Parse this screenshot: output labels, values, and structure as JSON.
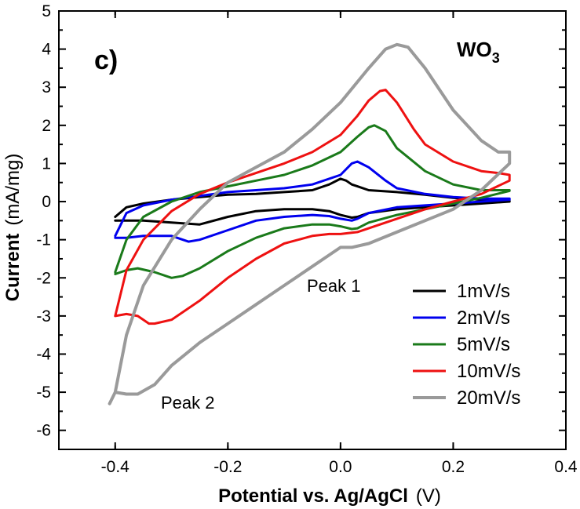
{
  "chart_data": {
    "type": "line",
    "panel_label": "c)",
    "material_label": "WO",
    "material_subscript": "3",
    "xlabel": "Potential vs. Ag/AgCl",
    "xunit": "(V)",
    "ylabel": "Current",
    "yunit": "(mA/mg)",
    "xlim": [
      -0.5,
      0.4
    ],
    "ylim": [
      -6.5,
      5
    ],
    "xticks": [
      -0.4,
      -0.2,
      0.0,
      0.2,
      0.4
    ],
    "xtick_labels": [
      "-0.4",
      "-0.2",
      "0.0",
      "0.2",
      "0.4"
    ],
    "yticks": [
      -6,
      -5,
      -4,
      -3,
      -2,
      -1,
      0,
      1,
      2,
      3,
      4,
      5
    ],
    "ytick_labels": [
      "-6",
      "-5",
      "-4",
      "-3",
      "-2",
      "-1",
      "0",
      "1",
      "2",
      "3",
      "4",
      "5"
    ],
    "grid": false,
    "legend_position": "bottom-right",
    "annotations": [
      {
        "text": "Peak 1",
        "x": 0.0,
        "y": -2.4
      },
      {
        "text": "Peak 2",
        "x": -0.32,
        "y": -5.3
      }
    ],
    "series": [
      {
        "name": "1mV/s",
        "color": "#000000",
        "x": [
          -0.4,
          -0.38,
          -0.35,
          -0.3,
          -0.25,
          -0.2,
          -0.15,
          -0.1,
          -0.05,
          -0.02,
          0.0,
          0.01,
          0.02,
          0.03,
          0.05,
          0.1,
          0.15,
          0.2,
          0.25,
          0.3,
          0.3,
          0.25,
          0.2,
          0.15,
          0.1,
          0.05,
          0.03,
          0.02,
          0.0,
          -0.02,
          -0.05,
          -0.1,
          -0.15,
          -0.2,
          -0.25,
          -0.3,
          -0.35,
          -0.38,
          -0.4
        ],
        "y": [
          -0.4,
          -0.15,
          -0.05,
          0.05,
          0.12,
          0.18,
          0.2,
          0.25,
          0.3,
          0.45,
          0.6,
          0.55,
          0.45,
          0.4,
          0.3,
          0.25,
          0.18,
          0.1,
          0.05,
          0.02,
          0.0,
          -0.05,
          -0.1,
          -0.15,
          -0.2,
          -0.3,
          -0.4,
          -0.42,
          -0.35,
          -0.25,
          -0.2,
          -0.2,
          -0.25,
          -0.4,
          -0.6,
          -0.55,
          -0.5,
          -0.5,
          -0.5
        ]
      },
      {
        "name": "2mV/s",
        "color": "#0000ee",
        "x": [
          -0.4,
          -0.38,
          -0.35,
          -0.3,
          -0.25,
          -0.2,
          -0.15,
          -0.1,
          -0.05,
          0.0,
          0.02,
          0.03,
          0.05,
          0.08,
          0.1,
          0.15,
          0.2,
          0.25,
          0.3,
          0.3,
          0.25,
          0.2,
          0.15,
          0.1,
          0.05,
          0.03,
          0.02,
          0.0,
          -0.02,
          -0.05,
          -0.1,
          -0.15,
          -0.2,
          -0.25,
          -0.27,
          -0.3,
          -0.35,
          -0.38,
          -0.4
        ],
        "y": [
          -0.9,
          -0.3,
          -0.1,
          0.05,
          0.15,
          0.25,
          0.3,
          0.35,
          0.45,
          0.7,
          1.0,
          1.05,
          0.9,
          0.55,
          0.35,
          0.2,
          0.12,
          0.08,
          0.08,
          0.05,
          0.0,
          -0.05,
          -0.1,
          -0.15,
          -0.3,
          -0.45,
          -0.5,
          -0.45,
          -0.38,
          -0.35,
          -0.4,
          -0.5,
          -0.75,
          -1.0,
          -1.05,
          -0.9,
          -0.9,
          -0.95,
          -0.95
        ]
      },
      {
        "name": "5mV/s",
        "color": "#1a7a1a",
        "x": [
          -0.4,
          -0.38,
          -0.35,
          -0.3,
          -0.25,
          -0.2,
          -0.15,
          -0.1,
          -0.05,
          0.0,
          0.03,
          0.05,
          0.06,
          0.08,
          0.1,
          0.15,
          0.2,
          0.25,
          0.3,
          0.3,
          0.25,
          0.2,
          0.15,
          0.1,
          0.05,
          0.03,
          0.02,
          0.0,
          -0.02,
          -0.05,
          -0.1,
          -0.15,
          -0.2,
          -0.25,
          -0.28,
          -0.3,
          -0.33,
          -0.36,
          -0.38,
          -0.4
        ],
        "y": [
          -1.85,
          -1.0,
          -0.4,
          0.0,
          0.25,
          0.4,
          0.55,
          0.7,
          0.95,
          1.3,
          1.7,
          1.95,
          2.0,
          1.85,
          1.4,
          0.8,
          0.45,
          0.3,
          0.3,
          0.28,
          0.1,
          -0.05,
          -0.2,
          -0.35,
          -0.55,
          -0.7,
          -0.72,
          -0.65,
          -0.6,
          -0.6,
          -0.7,
          -0.95,
          -1.3,
          -1.75,
          -1.95,
          -2.0,
          -1.85,
          -1.75,
          -1.8,
          -1.9
        ]
      },
      {
        "name": "10mV/s",
        "color": "#ee1111",
        "x": [
          -0.4,
          -0.38,
          -0.35,
          -0.3,
          -0.25,
          -0.2,
          -0.15,
          -0.1,
          -0.05,
          0.0,
          0.03,
          0.05,
          0.07,
          0.08,
          0.1,
          0.13,
          0.15,
          0.2,
          0.25,
          0.28,
          0.3,
          0.3,
          0.25,
          0.2,
          0.15,
          0.1,
          0.05,
          0.03,
          0.0,
          -0.02,
          -0.05,
          -0.1,
          -0.15,
          -0.2,
          -0.25,
          -0.3,
          -0.33,
          -0.34,
          -0.36,
          -0.38,
          -0.4
        ],
        "y": [
          -3.0,
          -1.8,
          -1.0,
          -0.25,
          0.2,
          0.5,
          0.75,
          1.0,
          1.3,
          1.75,
          2.25,
          2.65,
          2.9,
          2.93,
          2.6,
          1.9,
          1.5,
          1.05,
          0.8,
          0.75,
          0.7,
          0.55,
          0.2,
          0.0,
          -0.2,
          -0.45,
          -0.7,
          -0.8,
          -0.85,
          -0.85,
          -0.9,
          -1.1,
          -1.5,
          -2.0,
          -2.6,
          -3.1,
          -3.2,
          -3.2,
          -3.0,
          -2.95,
          -3.0
        ]
      },
      {
        "name": "20mV/s",
        "color": "#9a9a9a",
        "x": [
          -0.4,
          -0.38,
          -0.35,
          -0.3,
          -0.25,
          -0.2,
          -0.15,
          -0.1,
          -0.05,
          0.0,
          0.05,
          0.08,
          0.1,
          0.12,
          0.15,
          0.2,
          0.25,
          0.28,
          0.3,
          0.3,
          0.25,
          0.2,
          0.15,
          0.1,
          0.05,
          0.02,
          0.0,
          -0.02,
          -0.05,
          -0.1,
          -0.15,
          -0.2,
          -0.25,
          -0.3,
          -0.33,
          -0.36,
          -0.38,
          -0.4,
          -0.41
        ],
        "y": [
          -5.0,
          -3.5,
          -2.2,
          -1.0,
          -0.2,
          0.5,
          0.9,
          1.3,
          1.9,
          2.6,
          3.5,
          4.0,
          4.12,
          4.05,
          3.5,
          2.4,
          1.6,
          1.3,
          1.3,
          1.0,
          0.3,
          -0.2,
          -0.5,
          -0.8,
          -1.1,
          -1.2,
          -1.2,
          -1.4,
          -1.7,
          -2.2,
          -2.7,
          -3.2,
          -3.7,
          -4.3,
          -4.8,
          -5.05,
          -5.05,
          -5.0,
          -5.3
        ]
      }
    ]
  }
}
